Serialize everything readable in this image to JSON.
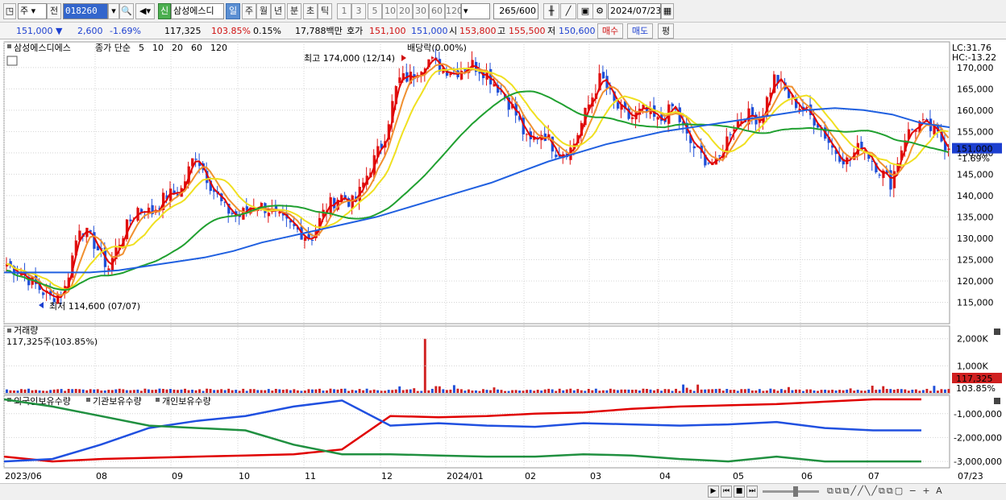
{
  "toolbar": {
    "market": "주",
    "period_prefix": "전",
    "code": "018260",
    "name": "삼성에스디",
    "badge": "신",
    "periods": [
      "일",
      "주",
      "월",
      "년",
      "분",
      "초",
      "틱"
    ],
    "active_period": "일",
    "intervals": [
      "1",
      "3",
      "5",
      "10",
      "20",
      "30",
      "60",
      "120"
    ],
    "count": "265",
    "count_total": "/600",
    "date": "2024/07/23"
  },
  "quote": {
    "price": "151,000",
    "change": "2,600",
    "change_pct": "-1.69%",
    "volume": "117,325",
    "volume_ratio": "103.85%",
    "turnover": "0.15%",
    "amount": "17,788백만",
    "ask_label": "호가",
    "ask1": "151,100",
    "ask2": "151,000",
    "open_label": "시",
    "open": "153,800",
    "high_label": "고",
    "high": "155,500",
    "low_label": "저",
    "low": "150,600",
    "buy": "매수",
    "sell": "매도",
    "eval": "평"
  },
  "legend": {
    "name": "삼성에스디에스",
    "ma_title": "종가 단순",
    "ma": [
      {
        "label": "5",
        "color": "#e00000"
      },
      {
        "label": "10",
        "color": "#f09030"
      },
      {
        "label": "20",
        "color": "#f0e020"
      },
      {
        "label": "60",
        "color": "#20a030"
      },
      {
        "label": "120",
        "color": "#2060e0"
      }
    ],
    "lc": "LC:31.76",
    "hc": "HC:-13.22"
  },
  "annotations": {
    "high": "최고 174,000 (12/14)",
    "low": "최저 114,600 (07/07)",
    "dividend": "배당락(0.00%)"
  },
  "price_axis": {
    "ticks": [
      "170,000",
      "165,000",
      "160,000",
      "155,000",
      "150,000",
      "145,000",
      "140,000",
      "135,000",
      "130,000",
      "125,000",
      "120,000",
      "115,000"
    ],
    "current": "151,000",
    "current_pct": "-1.69%"
  },
  "volume": {
    "title": "거래량",
    "value": "117,325주(103.85%)",
    "ticks": [
      "2,000K",
      "1,000K"
    ],
    "current": "117,325",
    "current_pct": "103.85%"
  },
  "holdings": {
    "series": [
      {
        "name": "외국인보유수량",
        "color": "#e00000"
      },
      {
        "name": "기관보유수량",
        "color": "#2050e0"
      },
      {
        "name": "개인보유수량",
        "color": "#209040"
      }
    ],
    "ticks": [
      "-1,000,000",
      "-2,000,000",
      "-3,000,000"
    ]
  },
  "xaxis": {
    "labels": [
      "2023/06",
      "08",
      "09",
      "10",
      "11",
      "12",
      "2024/01",
      "02",
      "03",
      "04",
      "05",
      "06",
      "07"
    ],
    "end": "07/23"
  },
  "chart_data": {
    "type": "candlestick",
    "price_range": [
      110000,
      176000
    ],
    "volume_range": [
      0,
      2200000
    ],
    "holdings_range": [
      -3200000,
      -300000
    ],
    "x_months": [
      "2023/06",
      "08",
      "09",
      "10",
      "11",
      "12",
      "2024/01",
      "02",
      "03",
      "04",
      "05",
      "06",
      "07",
      "07/23"
    ],
    "price_close": [
      124000,
      122000,
      119000,
      116000,
      118000,
      133000,
      129000,
      123000,
      131000,
      137000,
      136000,
      140000,
      141000,
      150000,
      143000,
      137000,
      135000,
      138000,
      137000,
      134000,
      132000,
      130000,
      137000,
      140000,
      138000,
      146000,
      153000,
      167000,
      168000,
      172000,
      170000,
      169000,
      171000,
      169000,
      165000,
      160000,
      152000,
      155000,
      150000,
      151000,
      160000,
      168000,
      161000,
      158000,
      160000,
      157000,
      161000,
      153000,
      149000,
      147000,
      156000,
      159000,
      158000,
      168000,
      163000,
      160000,
      157000,
      151000,
      148000,
      152000,
      147000,
      143000,
      154000,
      157000,
      155000,
      151000
    ],
    "ma120": [
      122000,
      122000,
      122000,
      122000,
      122500,
      123500,
      124500,
      125500,
      127000,
      129000,
      130500,
      132000,
      133500,
      135000,
      137000,
      139000,
      141000,
      143000,
      145500,
      148000,
      150000,
      152000,
      153500,
      155000,
      156000,
      157000,
      158000,
      159000,
      160000,
      160500,
      160000,
      159000,
      157000,
      156000
    ],
    "volume_spike": "2,000K",
    "holdings": {
      "외국인보유수량": [
        -2800000,
        -3000000,
        -2900000,
        -2850000,
        -2800000,
        -2750000,
        -2700000,
        -2500000,
        -1100000,
        -1150000,
        -1100000,
        -1000000,
        -950000,
        -800000,
        -700000,
        -650000,
        -600000,
        -500000,
        -400000,
        -400000
      ],
      "기관보유수량": [
        -3000000,
        -2900000,
        -2300000,
        -1600000,
        -1300000,
        -1100000,
        -700000,
        -450000,
        -1500000,
        -1400000,
        -1500000,
        -1550000,
        -1400000,
        -1450000,
        -1500000,
        -1450000,
        -1350000,
        -1600000,
        -1700000,
        -1700000
      ],
      "개인보유수량": [
        -400000,
        -700000,
        -1100000,
        -1500000,
        -1600000,
        -1700000,
        -2300000,
        -2700000,
        -2700000,
        -2750000,
        -2800000,
        -2800000,
        -2700000,
        -2750000,
        -2900000,
        -3000000,
        -2800000,
        -3000000,
        -3000000,
        -3000000
      ]
    }
  }
}
